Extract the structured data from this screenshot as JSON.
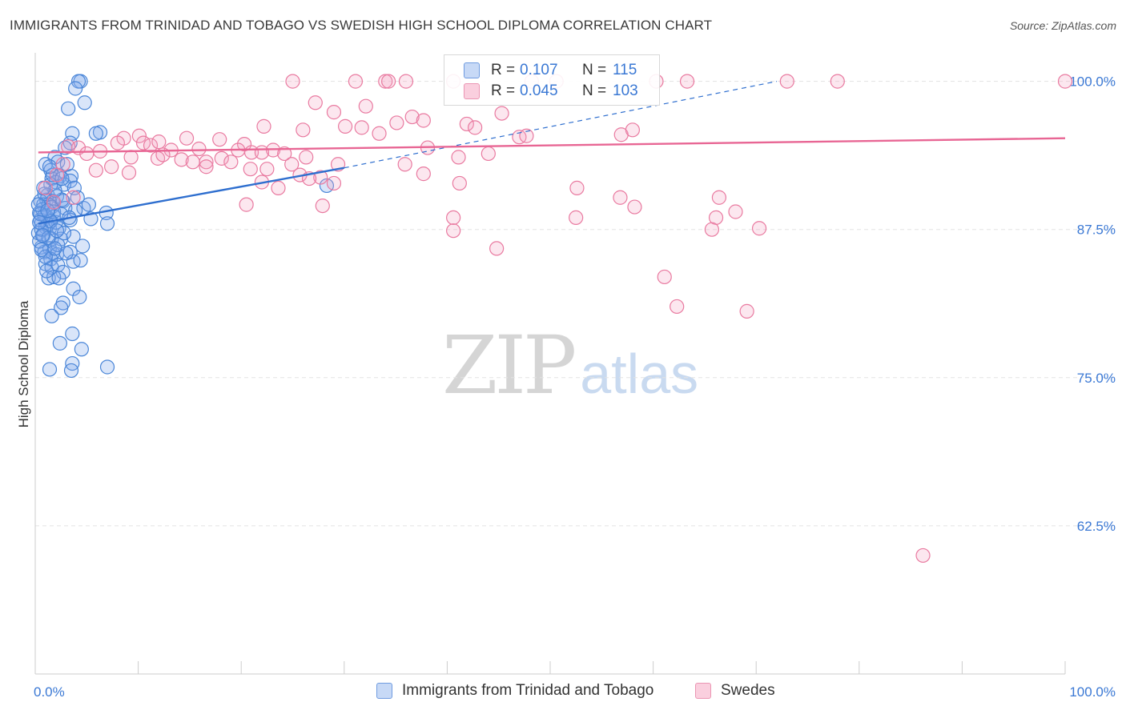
{
  "title": "IMMIGRANTS FROM TRINIDAD AND TOBAGO VS SWEDISH HIGH SCHOOL DIPLOMA CORRELATION CHART",
  "source": "Source: ZipAtlas.com",
  "watermark": {
    "part1": "ZIP",
    "part2": "atlas"
  },
  "colors": {
    "blue": "#4a86d8",
    "blue_fill": "rgba(130,170,235,0.30)",
    "blue_line": "#2f6fcf",
    "pink": "#e97aa0",
    "pink_fill": "rgba(245,160,190,0.25)",
    "pink_line": "#e86694",
    "axis_label": "#3a78d4",
    "grid": "#e3e3e3"
  },
  "legend": {
    "rows": [
      {
        "r_label": "R =",
        "r_value": "0.107",
        "n_label": "N =",
        "n_value": "115"
      },
      {
        "r_label": "R =",
        "r_value": "0.045",
        "n_label": "N =",
        "n_value": "103"
      }
    ]
  },
  "bottom_legend": {
    "series1": "Immigrants from Trinidad and Tobago",
    "series2": "Swedes"
  },
  "chart_data": {
    "type": "scatter",
    "ylabel": "High School Diploma",
    "xlim": [
      0,
      100
    ],
    "ylim": [
      50,
      102
    ],
    "x_tick_labels": [
      "0.0%",
      "100.0%"
    ],
    "y_ticks": [
      100,
      87.5,
      75,
      62.5
    ],
    "y_tick_labels": [
      "100.0%",
      "87.5%",
      "75.0%",
      "62.5%"
    ],
    "grid": true,
    "legend_position": "top-center",
    "series": [
      {
        "name": "Immigrants from Trinidad and Tobago",
        "color": "blue",
        "trend": {
          "x0": 0.3,
          "y0": 88.0,
          "x1": 30.0,
          "y1": 92.7,
          "dashed_to_x": 72.0,
          "dashed_to_y": 100.0
        },
        "points": [
          [
            4.4,
            100
          ],
          [
            4.2,
            100
          ],
          [
            3.9,
            99.4
          ],
          [
            4.8,
            98.2
          ],
          [
            3.2,
            97.7
          ],
          [
            3.6,
            95.6
          ],
          [
            6.3,
            95.7
          ],
          [
            5.9,
            95.6
          ],
          [
            3.4,
            94.8
          ],
          [
            2.9,
            94.4
          ],
          [
            1.9,
            93.6
          ],
          [
            2.2,
            93.2
          ],
          [
            1.0,
            93.0
          ],
          [
            1.5,
            92.5
          ],
          [
            2.4,
            92.0
          ],
          [
            3.5,
            92.0
          ],
          [
            1.6,
            91.8
          ],
          [
            3.4,
            91.6
          ],
          [
            2.0,
            91.5
          ],
          [
            2.8,
            91.3
          ],
          [
            1.5,
            91.3
          ],
          [
            3.8,
            91.0
          ],
          [
            28.3,
            91.2
          ],
          [
            1.2,
            90.4
          ],
          [
            2.1,
            90.3
          ],
          [
            1.1,
            90.0
          ],
          [
            1.7,
            89.9
          ],
          [
            2.7,
            89.9
          ],
          [
            0.5,
            89.9
          ],
          [
            0.8,
            89.6
          ],
          [
            1.3,
            89.6
          ],
          [
            1.6,
            89.4
          ],
          [
            4.7,
            89.3
          ],
          [
            2.9,
            89.3
          ],
          [
            3.9,
            89.1
          ],
          [
            6.9,
            88.9
          ],
          [
            0.4,
            88.9
          ],
          [
            1.1,
            88.6
          ],
          [
            1.8,
            88.6
          ],
          [
            3.4,
            88.3
          ],
          [
            5.4,
            88.4
          ],
          [
            7.0,
            88.0
          ],
          [
            0.6,
            88.0
          ],
          [
            1.0,
            87.7
          ],
          [
            1.4,
            87.6
          ],
          [
            2.3,
            87.6
          ],
          [
            0.3,
            87.2
          ],
          [
            0.8,
            87.0
          ],
          [
            1.6,
            86.7
          ],
          [
            2.5,
            86.7
          ],
          [
            3.7,
            86.9
          ],
          [
            0.6,
            86.0
          ],
          [
            1.4,
            85.9
          ],
          [
            0.9,
            85.6
          ],
          [
            1.7,
            85.5
          ],
          [
            2.1,
            85.4
          ],
          [
            4.6,
            86.1
          ],
          [
            3.4,
            85.6
          ],
          [
            1.5,
            85.0
          ],
          [
            3.7,
            84.8
          ],
          [
            4.4,
            84.9
          ],
          [
            1.0,
            84.6
          ],
          [
            1.6,
            84.3
          ],
          [
            2.2,
            84.5
          ],
          [
            2.7,
            83.9
          ],
          [
            1.3,
            83.4
          ],
          [
            1.8,
            83.5
          ],
          [
            2.3,
            83.4
          ],
          [
            3.7,
            82.5
          ],
          [
            4.3,
            81.8
          ],
          [
            2.7,
            81.3
          ],
          [
            2.5,
            80.9
          ],
          [
            1.6,
            80.2
          ],
          [
            3.6,
            78.7
          ],
          [
            2.4,
            77.9
          ],
          [
            4.5,
            77.4
          ],
          [
            3.6,
            76.2
          ],
          [
            7.0,
            75.9
          ],
          [
            1.4,
            75.7
          ],
          [
            3.5,
            75.6
          ],
          [
            0.5,
            88.3
          ],
          [
            0.9,
            88.7
          ],
          [
            1.2,
            87.9
          ],
          [
            2.0,
            88.1
          ],
          [
            0.7,
            89.2
          ],
          [
            1.8,
            89.0
          ],
          [
            2.6,
            90.0
          ],
          [
            0.4,
            86.5
          ],
          [
            1.0,
            85.2
          ],
          [
            2.2,
            86.2
          ],
          [
            0.6,
            87.5
          ],
          [
            1.3,
            86.8
          ],
          [
            0.9,
            90.5
          ],
          [
            1.9,
            90.8
          ],
          [
            2.5,
            88.8
          ],
          [
            1.1,
            84.0
          ],
          [
            3.0,
            85.5
          ],
          [
            0.5,
            88.8
          ],
          [
            1.5,
            88.2
          ],
          [
            2.8,
            87.2
          ],
          [
            0.8,
            91.0
          ],
          [
            1.7,
            92.1
          ],
          [
            3.1,
            93.0
          ],
          [
            0.3,
            89.6
          ],
          [
            1.2,
            89.1
          ],
          [
            2.1,
            87.4
          ],
          [
            0.6,
            85.8
          ],
          [
            4.1,
            90.2
          ],
          [
            3.3,
            88.5
          ],
          [
            0.4,
            88.1
          ],
          [
            1.4,
            92.8
          ],
          [
            2.6,
            91.8
          ],
          [
            0.7,
            87.0
          ],
          [
            1.9,
            85.9
          ],
          [
            5.2,
            89.6
          ]
        ]
      },
      {
        "name": "Swedes",
        "color": "pink",
        "trend": {
          "x0": 0.3,
          "y0": 94.0,
          "x1": 100.0,
          "y1": 95.2
        },
        "points": [
          [
            25.0,
            100
          ],
          [
            31.1,
            100
          ],
          [
            34.0,
            100
          ],
          [
            34.3,
            100
          ],
          [
            36.0,
            100
          ],
          [
            40.6,
            100
          ],
          [
            48.2,
            100
          ],
          [
            50.6,
            100
          ],
          [
            60.3,
            100
          ],
          [
            63.3,
            100
          ],
          [
            73.0,
            100
          ],
          [
            77.9,
            100
          ],
          [
            100.0,
            100
          ],
          [
            27.2,
            98.2
          ],
          [
            32.1,
            97.9
          ],
          [
            36.6,
            97.0
          ],
          [
            45.3,
            97.3
          ],
          [
            41.9,
            96.4
          ],
          [
            37.7,
            96.7
          ],
          [
            29.0,
            97.4
          ],
          [
            22.2,
            96.2
          ],
          [
            26.0,
            95.9
          ],
          [
            30.1,
            96.2
          ],
          [
            31.7,
            96.1
          ],
          [
            35.1,
            96.5
          ],
          [
            42.7,
            96.1
          ],
          [
            47.0,
            95.3
          ],
          [
            56.9,
            95.5
          ],
          [
            58.0,
            95.9
          ],
          [
            33.4,
            95.6
          ],
          [
            8.6,
            95.2
          ],
          [
            10.1,
            95.4
          ],
          [
            8.0,
            94.8
          ],
          [
            10.5,
            94.8
          ],
          [
            11.2,
            94.6
          ],
          [
            12.0,
            94.9
          ],
          [
            14.7,
            95.2
          ],
          [
            17.9,
            95.1
          ],
          [
            20.3,
            94.7
          ],
          [
            13.2,
            94.2
          ],
          [
            15.9,
            94.3
          ],
          [
            4.2,
            94.4
          ],
          [
            6.3,
            94.1
          ],
          [
            3.2,
            94.5
          ],
          [
            5.0,
            93.9
          ],
          [
            9.3,
            93.6
          ],
          [
            11.9,
            93.5
          ],
          [
            14.2,
            93.4
          ],
          [
            15.3,
            93.2
          ],
          [
            16.6,
            93.2
          ],
          [
            18.1,
            93.5
          ],
          [
            19.7,
            94.2
          ],
          [
            23.1,
            94.2
          ],
          [
            24.2,
            93.9
          ],
          [
            26.3,
            93.6
          ],
          [
            29.4,
            93.0
          ],
          [
            35.9,
            93.0
          ],
          [
            16.6,
            92.8
          ],
          [
            19.0,
            93.2
          ],
          [
            21.0,
            94.0
          ],
          [
            22.0,
            94.0
          ],
          [
            7.4,
            92.8
          ],
          [
            5.9,
            92.5
          ],
          [
            2.7,
            93.0
          ],
          [
            2.1,
            92.1
          ],
          [
            20.9,
            92.6
          ],
          [
            22.5,
            92.6
          ],
          [
            25.7,
            92.1
          ],
          [
            37.7,
            92.2
          ],
          [
            27.7,
            91.9
          ],
          [
            26.6,
            91.8
          ],
          [
            29.0,
            91.4
          ],
          [
            41.2,
            91.4
          ],
          [
            22.0,
            91.5
          ],
          [
            23.6,
            91.0
          ],
          [
            52.6,
            91.0
          ],
          [
            66.4,
            90.2
          ],
          [
            56.8,
            90.2
          ],
          [
            58.2,
            89.4
          ],
          [
            27.9,
            89.5
          ],
          [
            20.5,
            89.6
          ],
          [
            1.0,
            91.0
          ],
          [
            1.8,
            89.8
          ],
          [
            68.0,
            89.0
          ],
          [
            66.1,
            88.5
          ],
          [
            52.5,
            88.5
          ],
          [
            40.6,
            88.5
          ],
          [
            70.3,
            87.6
          ],
          [
            65.7,
            87.5
          ],
          [
            40.6,
            87.4
          ],
          [
            44.8,
            85.9
          ],
          [
            61.1,
            83.5
          ],
          [
            62.3,
            81.0
          ],
          [
            69.1,
            80.6
          ],
          [
            86.2,
            60.0
          ],
          [
            41.1,
            93.6
          ],
          [
            47.7,
            95.4
          ],
          [
            38.1,
            94.4
          ],
          [
            44.0,
            93.9
          ],
          [
            12.4,
            93.8
          ],
          [
            24.9,
            93.0
          ],
          [
            9.1,
            92.3
          ],
          [
            3.7,
            90.2
          ]
        ]
      }
    ]
  }
}
